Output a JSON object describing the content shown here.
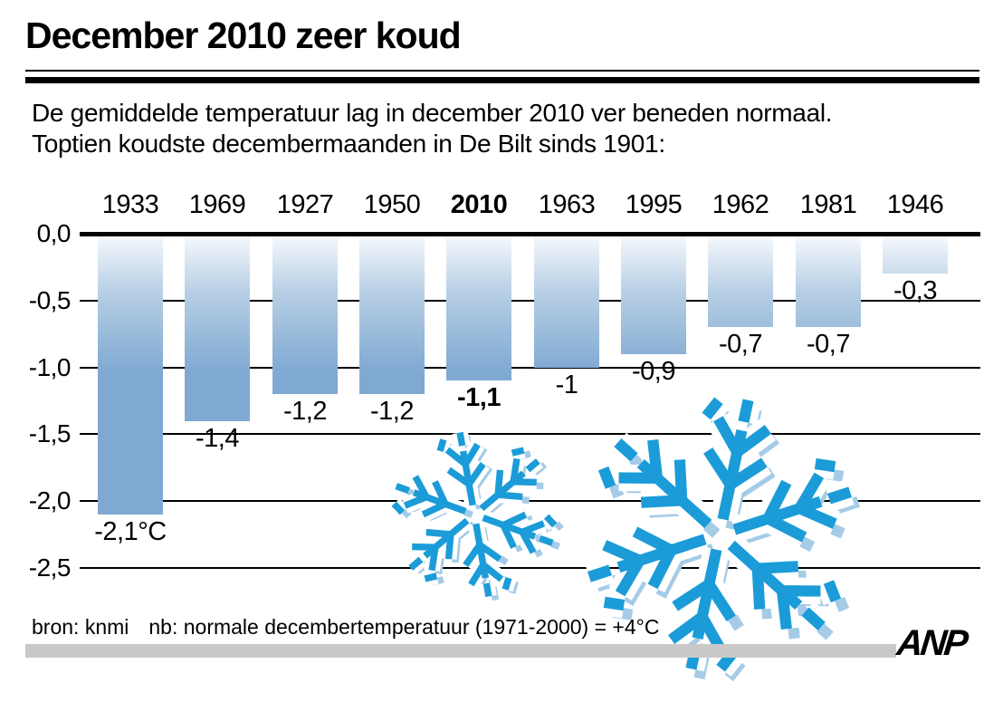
{
  "header": {
    "title": "December 2010 zeer koud"
  },
  "intro": {
    "line1": "De gemiddelde temperatuur lag in december 2010 ver beneden normaal.",
    "line2": "Toptien koudste decembermaanden in De Bilt sinds 1901:"
  },
  "chart_data": {
    "type": "bar",
    "title": "Toptien koudste decembermaanden in De Bilt sinds 1901",
    "unit": "°C",
    "categories": [
      "1933",
      "1969",
      "1927",
      "1950",
      "2010",
      "1963",
      "1995",
      "1962",
      "1981",
      "1946"
    ],
    "values": [
      -2.1,
      -1.4,
      -1.2,
      -1.2,
      -1.1,
      -1,
      -0.9,
      -0.7,
      -0.7,
      -0.3
    ],
    "value_labels": [
      "-2,1°C",
      "-1,4",
      "-1,2",
      "-1,2",
      "-1,1",
      "-1",
      "-0,9",
      "-0,7",
      "-0,7",
      "-0,3"
    ],
    "highlight_index": 4,
    "highlight_category": "2010",
    "ytick_labels": [
      "0,0",
      "-0,5",
      "-1,0",
      "-1,5",
      "-2,0",
      "-2,5"
    ],
    "ytick_values": [
      0,
      -0.5,
      -1,
      -1.5,
      -2,
      -2.5
    ],
    "ylim": [
      -2.5,
      0
    ],
    "grid": true,
    "legend": "none",
    "bar_top_color": "#F4F8FC",
    "bar_bottom_color": "#7FA9D2"
  },
  "decor": {
    "snowflake_main_color": "#1B9CD8",
    "snowflake_shadow_color": "#A5CBE7"
  },
  "footer": {
    "source": "bron: knmi",
    "note": "nb: normale decembertemperatuur (1971-2000) = +4°C",
    "logo": "ANP"
  }
}
